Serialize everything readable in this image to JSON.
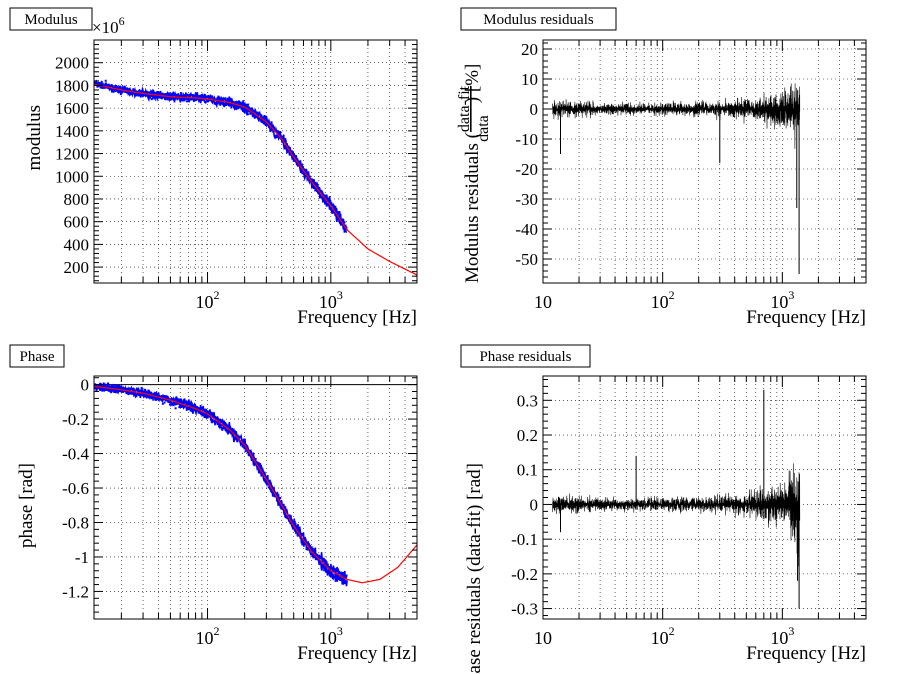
{
  "chart_data": [
    {
      "type": "scatter",
      "panel_title": "Modulus",
      "xlabel": "Frequency [Hz]",
      "ylabel": "modulus",
      "y_multiplier": "×10",
      "y_multiplier_exp": "6",
      "xscale": "log",
      "xlim": [
        12,
        5000
      ],
      "ylim": [
        60,
        2200
      ],
      "grid": true,
      "xticks": [
        {
          "v": 100,
          "base": "10",
          "exp": "2"
        },
        {
          "v": 1000,
          "base": "10",
          "exp": "3"
        }
      ],
      "yticks": [
        200,
        400,
        600,
        800,
        1000,
        1200,
        1400,
        1600,
        1800,
        2000
      ],
      "series": [
        {
          "kind": "data",
          "color": "#0000ff",
          "noise": 40,
          "x": [
            12,
            20,
            30,
            50,
            80,
            100,
            150,
            200,
            300,
            400,
            500,
            700,
            1000,
            1350
          ],
          "y": [
            1820,
            1760,
            1730,
            1700,
            1690,
            1680,
            1650,
            1610,
            1480,
            1330,
            1170,
            950,
            740,
            530
          ]
        },
        {
          "kind": "fit",
          "color": "#ff0000",
          "x": [
            12,
            20,
            30,
            50,
            80,
            100,
            150,
            200,
            300,
            400,
            500,
            700,
            1000,
            1350,
            2000,
            3000,
            5000
          ],
          "y": [
            1810,
            1760,
            1730,
            1700,
            1690,
            1680,
            1650,
            1610,
            1480,
            1330,
            1170,
            950,
            740,
            530,
            360,
            250,
            130
          ]
        }
      ]
    },
    {
      "type": "line",
      "panel_title": "Modulus residuals",
      "xlabel": "Frequency [Hz]",
      "ylabel": "Modulus residuals (data-fit / data) [%]",
      "xscale": "log",
      "xlim": [
        10,
        5000
      ],
      "ylim": [
        -58,
        23
      ],
      "grid": true,
      "xticks": [
        {
          "v": 10,
          "base": "10",
          "exp": ""
        },
        {
          "v": 100,
          "base": "10",
          "exp": "2"
        },
        {
          "v": 1000,
          "base": "10",
          "exp": "3"
        }
      ],
      "yticks": [
        -50,
        -40,
        -30,
        -20,
        -10,
        0,
        10,
        20
      ],
      "series": [
        {
          "kind": "residual",
          "color": "#000000",
          "x": [
            12,
            30,
            100,
            300,
            600,
            1000,
            1200,
            1400
          ],
          "amp": [
            5,
            3,
            3,
            4,
            6,
            9,
            13,
            18
          ],
          "dip": [
            {
              "x": 1380,
              "y": -55
            },
            {
              "x": 1320,
              "y": -33
            },
            {
              "x": 14,
              "y": -15
            },
            {
              "x": 300,
              "y": -18
            }
          ]
        }
      ]
    },
    {
      "type": "scatter",
      "panel_title": "Phase",
      "xlabel": "Frequency [Hz]",
      "ylabel": "phase [rad]",
      "xscale": "log",
      "xlim": [
        12,
        5000
      ],
      "ylim": [
        -1.36,
        0.05
      ],
      "grid": true,
      "zero_line": true,
      "xticks": [
        {
          "v": 100,
          "base": "10",
          "exp": "2"
        },
        {
          "v": 1000,
          "base": "10",
          "exp": "3"
        }
      ],
      "yticks": [
        0,
        -0.2,
        -0.4,
        -0.6,
        -0.8,
        -1,
        -1.2
      ],
      "series": [
        {
          "kind": "data",
          "color": "#0000ff",
          "noise": 0.03,
          "x": [
            12,
            20,
            30,
            50,
            80,
            100,
            150,
            200,
            300,
            400,
            500,
            700,
            1000,
            1350
          ],
          "y": [
            -0.01,
            -0.03,
            -0.05,
            -0.09,
            -0.14,
            -0.17,
            -0.26,
            -0.35,
            -0.55,
            -0.7,
            -0.82,
            -0.97,
            -1.08,
            -1.13
          ]
        },
        {
          "kind": "fit",
          "color": "#ff0000",
          "x": [
            12,
            20,
            30,
            50,
            80,
            100,
            150,
            200,
            300,
            400,
            500,
            700,
            1000,
            1350,
            1800,
            2500,
            3500,
            5000
          ],
          "y": [
            -0.01,
            -0.03,
            -0.05,
            -0.09,
            -0.14,
            -0.17,
            -0.26,
            -0.35,
            -0.55,
            -0.7,
            -0.82,
            -0.97,
            -1.08,
            -1.13,
            -1.15,
            -1.13,
            -1.06,
            -0.93
          ]
        }
      ]
    },
    {
      "type": "line",
      "panel_title": "Phase residuals",
      "xlabel": "Frequency [Hz]",
      "ylabel": "Phase residuals (data-fit) [rad]",
      "xscale": "log",
      "xlim": [
        10,
        5000
      ],
      "ylim": [
        -0.33,
        0.37
      ],
      "grid": true,
      "xticks": [
        {
          "v": 10,
          "base": "10",
          "exp": ""
        },
        {
          "v": 100,
          "base": "10",
          "exp": "2"
        },
        {
          "v": 1000,
          "base": "10",
          "exp": "3"
        }
      ],
      "yticks": [
        0.3,
        0.2,
        0.1,
        0,
        -0.1,
        -0.2,
        -0.3
      ],
      "series": [
        {
          "kind": "residual",
          "color": "#000000",
          "x": [
            12,
            30,
            100,
            300,
            600,
            1000,
            1200,
            1400
          ],
          "amp": [
            0.04,
            0.03,
            0.03,
            0.04,
            0.06,
            0.09,
            0.14,
            0.24
          ],
          "dip": [
            {
              "x": 1380,
              "y": -0.3
            },
            {
              "x": 1340,
              "y": -0.22
            },
            {
              "x": 14,
              "y": -0.08
            },
            {
              "x": 60,
              "y": 0.14
            },
            {
              "x": 700,
              "y": 0.33
            }
          ]
        }
      ]
    }
  ]
}
